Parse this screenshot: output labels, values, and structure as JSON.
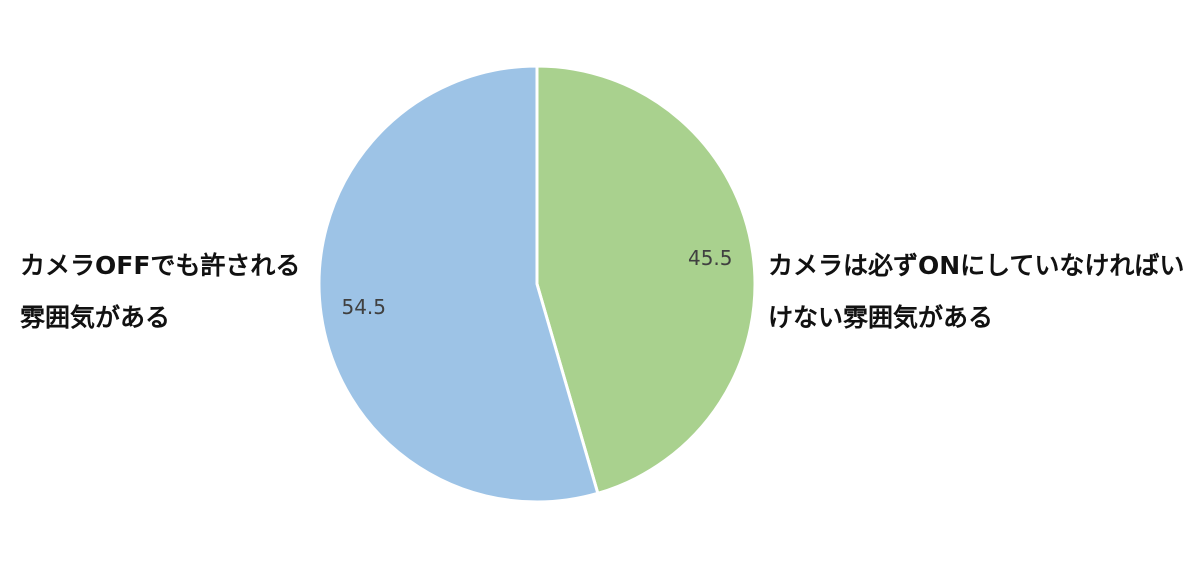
{
  "chart_data": {
    "type": "pie",
    "categories": [
      "カメラは必ずONにしていなければいけない雰囲気がある",
      "カメラOFFでも許される雰囲気がある"
    ],
    "values": [
      45.5,
      54.5
    ],
    "colors": [
      "#a9d18e",
      "#9dc3e6"
    ]
  }
}
